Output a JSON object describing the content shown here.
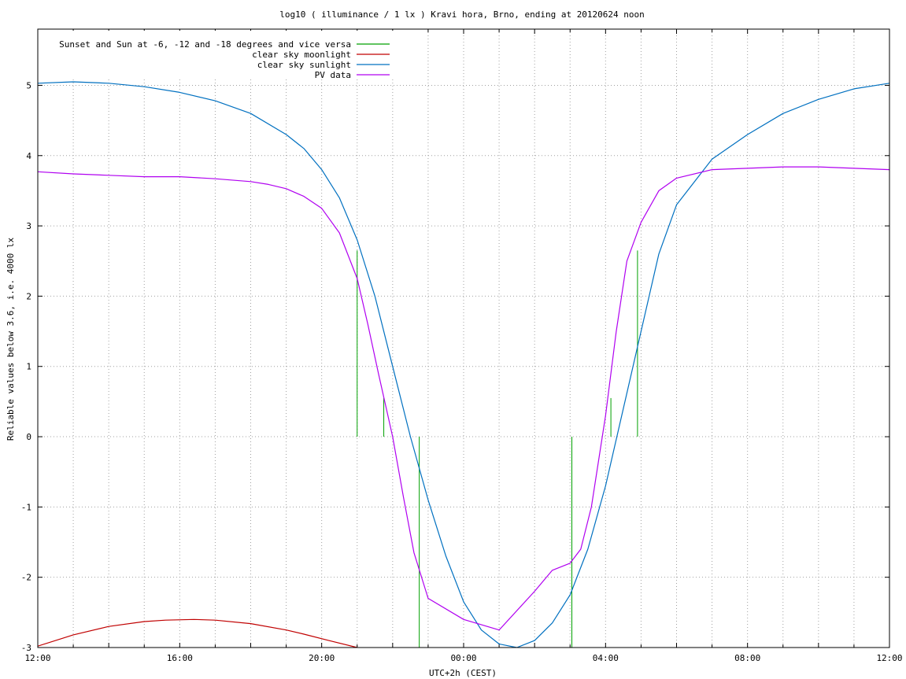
{
  "chart_data": {
    "type": "line",
    "title": "log10 ( illuminance / 1 lx ) Kravi hora, Brno, ending at 20120624 noon",
    "xlabel": "UTC+2h (CEST)",
    "ylabel": "Reliable values below 3.6, i.e. 4000 lx",
    "x_unit": "hours since 12:00",
    "xlim": [
      0,
      24
    ],
    "ylim": [
      -3,
      5.8
    ],
    "x_ticks": [
      {
        "value": 0,
        "label": "12:00"
      },
      {
        "value": 4,
        "label": "16:00"
      },
      {
        "value": 8,
        "label": "20:00"
      },
      {
        "value": 12,
        "label": "00:00"
      },
      {
        "value": 16,
        "label": "04:00"
      },
      {
        "value": 20,
        "label": "08:00"
      },
      {
        "value": 24,
        "label": "12:00"
      }
    ],
    "y_ticks": [
      -3,
      -2,
      -1,
      0,
      1,
      2,
      3,
      4,
      5
    ],
    "grid": true,
    "legend_position": "top-left",
    "series": [
      {
        "name": "Sunset and Sun at -6, -12 and -18 degrees and vice versa",
        "color": "#00a000",
        "style": "impulses",
        "impulses": [
          {
            "x": 9.0,
            "y_from": 0,
            "y_to": 2.65
          },
          {
            "x": 9.75,
            "y_from": 0,
            "y_to": 0.55
          },
          {
            "x": 10.75,
            "y_from": 0,
            "y_to": -3
          },
          {
            "x": 15.05,
            "y_from": 0,
            "y_to": -3
          },
          {
            "x": 16.15,
            "y_from": 0,
            "y_to": 0.55
          },
          {
            "x": 16.9,
            "y_from": 0,
            "y_to": 2.65
          }
        ]
      },
      {
        "name": "clear sky moonlight",
        "color": "#c00000",
        "x": [
          0,
          1,
          2,
          3,
          3.6,
          4.4,
          5,
          6,
          7,
          7.5,
          8.2,
          9.0
        ],
        "y": [
          -2.98,
          -2.82,
          -2.7,
          -2.63,
          -2.61,
          -2.6,
          -2.61,
          -2.66,
          -2.75,
          -2.81,
          -2.9,
          -3.0
        ]
      },
      {
        "name": "clear sky sunlight",
        "color": "#0070c0",
        "x": [
          0,
          1,
          2,
          3,
          4,
          5,
          6,
          7,
          7.5,
          8,
          8.5,
          9,
          9.5,
          10,
          10.5,
          11,
          11.5,
          12,
          12.5,
          13,
          13.5,
          14,
          14.5,
          15,
          15.5,
          16,
          16.5,
          17,
          17.5,
          18,
          19,
          20,
          21,
          22,
          23,
          24
        ],
        "y": [
          5.03,
          5.05,
          5.03,
          4.98,
          4.9,
          4.78,
          4.6,
          4.3,
          4.1,
          3.8,
          3.4,
          2.8,
          2.0,
          1.0,
          0.0,
          -0.9,
          -1.7,
          -2.35,
          -2.75,
          -2.95,
          -3.0,
          -2.9,
          -2.65,
          -2.25,
          -1.6,
          -0.7,
          0.4,
          1.5,
          2.6,
          3.3,
          3.95,
          4.3,
          4.6,
          4.8,
          4.95,
          5.03
        ]
      },
      {
        "name": "PV data",
        "color": "#b000f0",
        "x": [
          0,
          1,
          2,
          3,
          4,
          5,
          6,
          6.5,
          7,
          7.5,
          8,
          8.5,
          9,
          9.3,
          9.6,
          10,
          10.3,
          10.6,
          11,
          12,
          13,
          14,
          14.5,
          15,
          15.3,
          15.6,
          16,
          16.3,
          16.6,
          17,
          17.5,
          18,
          19,
          20,
          21,
          22,
          23,
          24
        ],
        "y": [
          3.77,
          3.74,
          3.72,
          3.7,
          3.7,
          3.67,
          3.63,
          3.59,
          3.53,
          3.42,
          3.25,
          2.9,
          2.25,
          1.6,
          0.9,
          0.0,
          -0.85,
          -1.65,
          -2.3,
          -2.6,
          -2.75,
          -2.2,
          -1.9,
          -1.8,
          -1.6,
          -1.0,
          0.3,
          1.5,
          2.5,
          3.05,
          3.5,
          3.68,
          3.8,
          3.82,
          3.84,
          3.84,
          3.82,
          3.8
        ]
      }
    ]
  }
}
